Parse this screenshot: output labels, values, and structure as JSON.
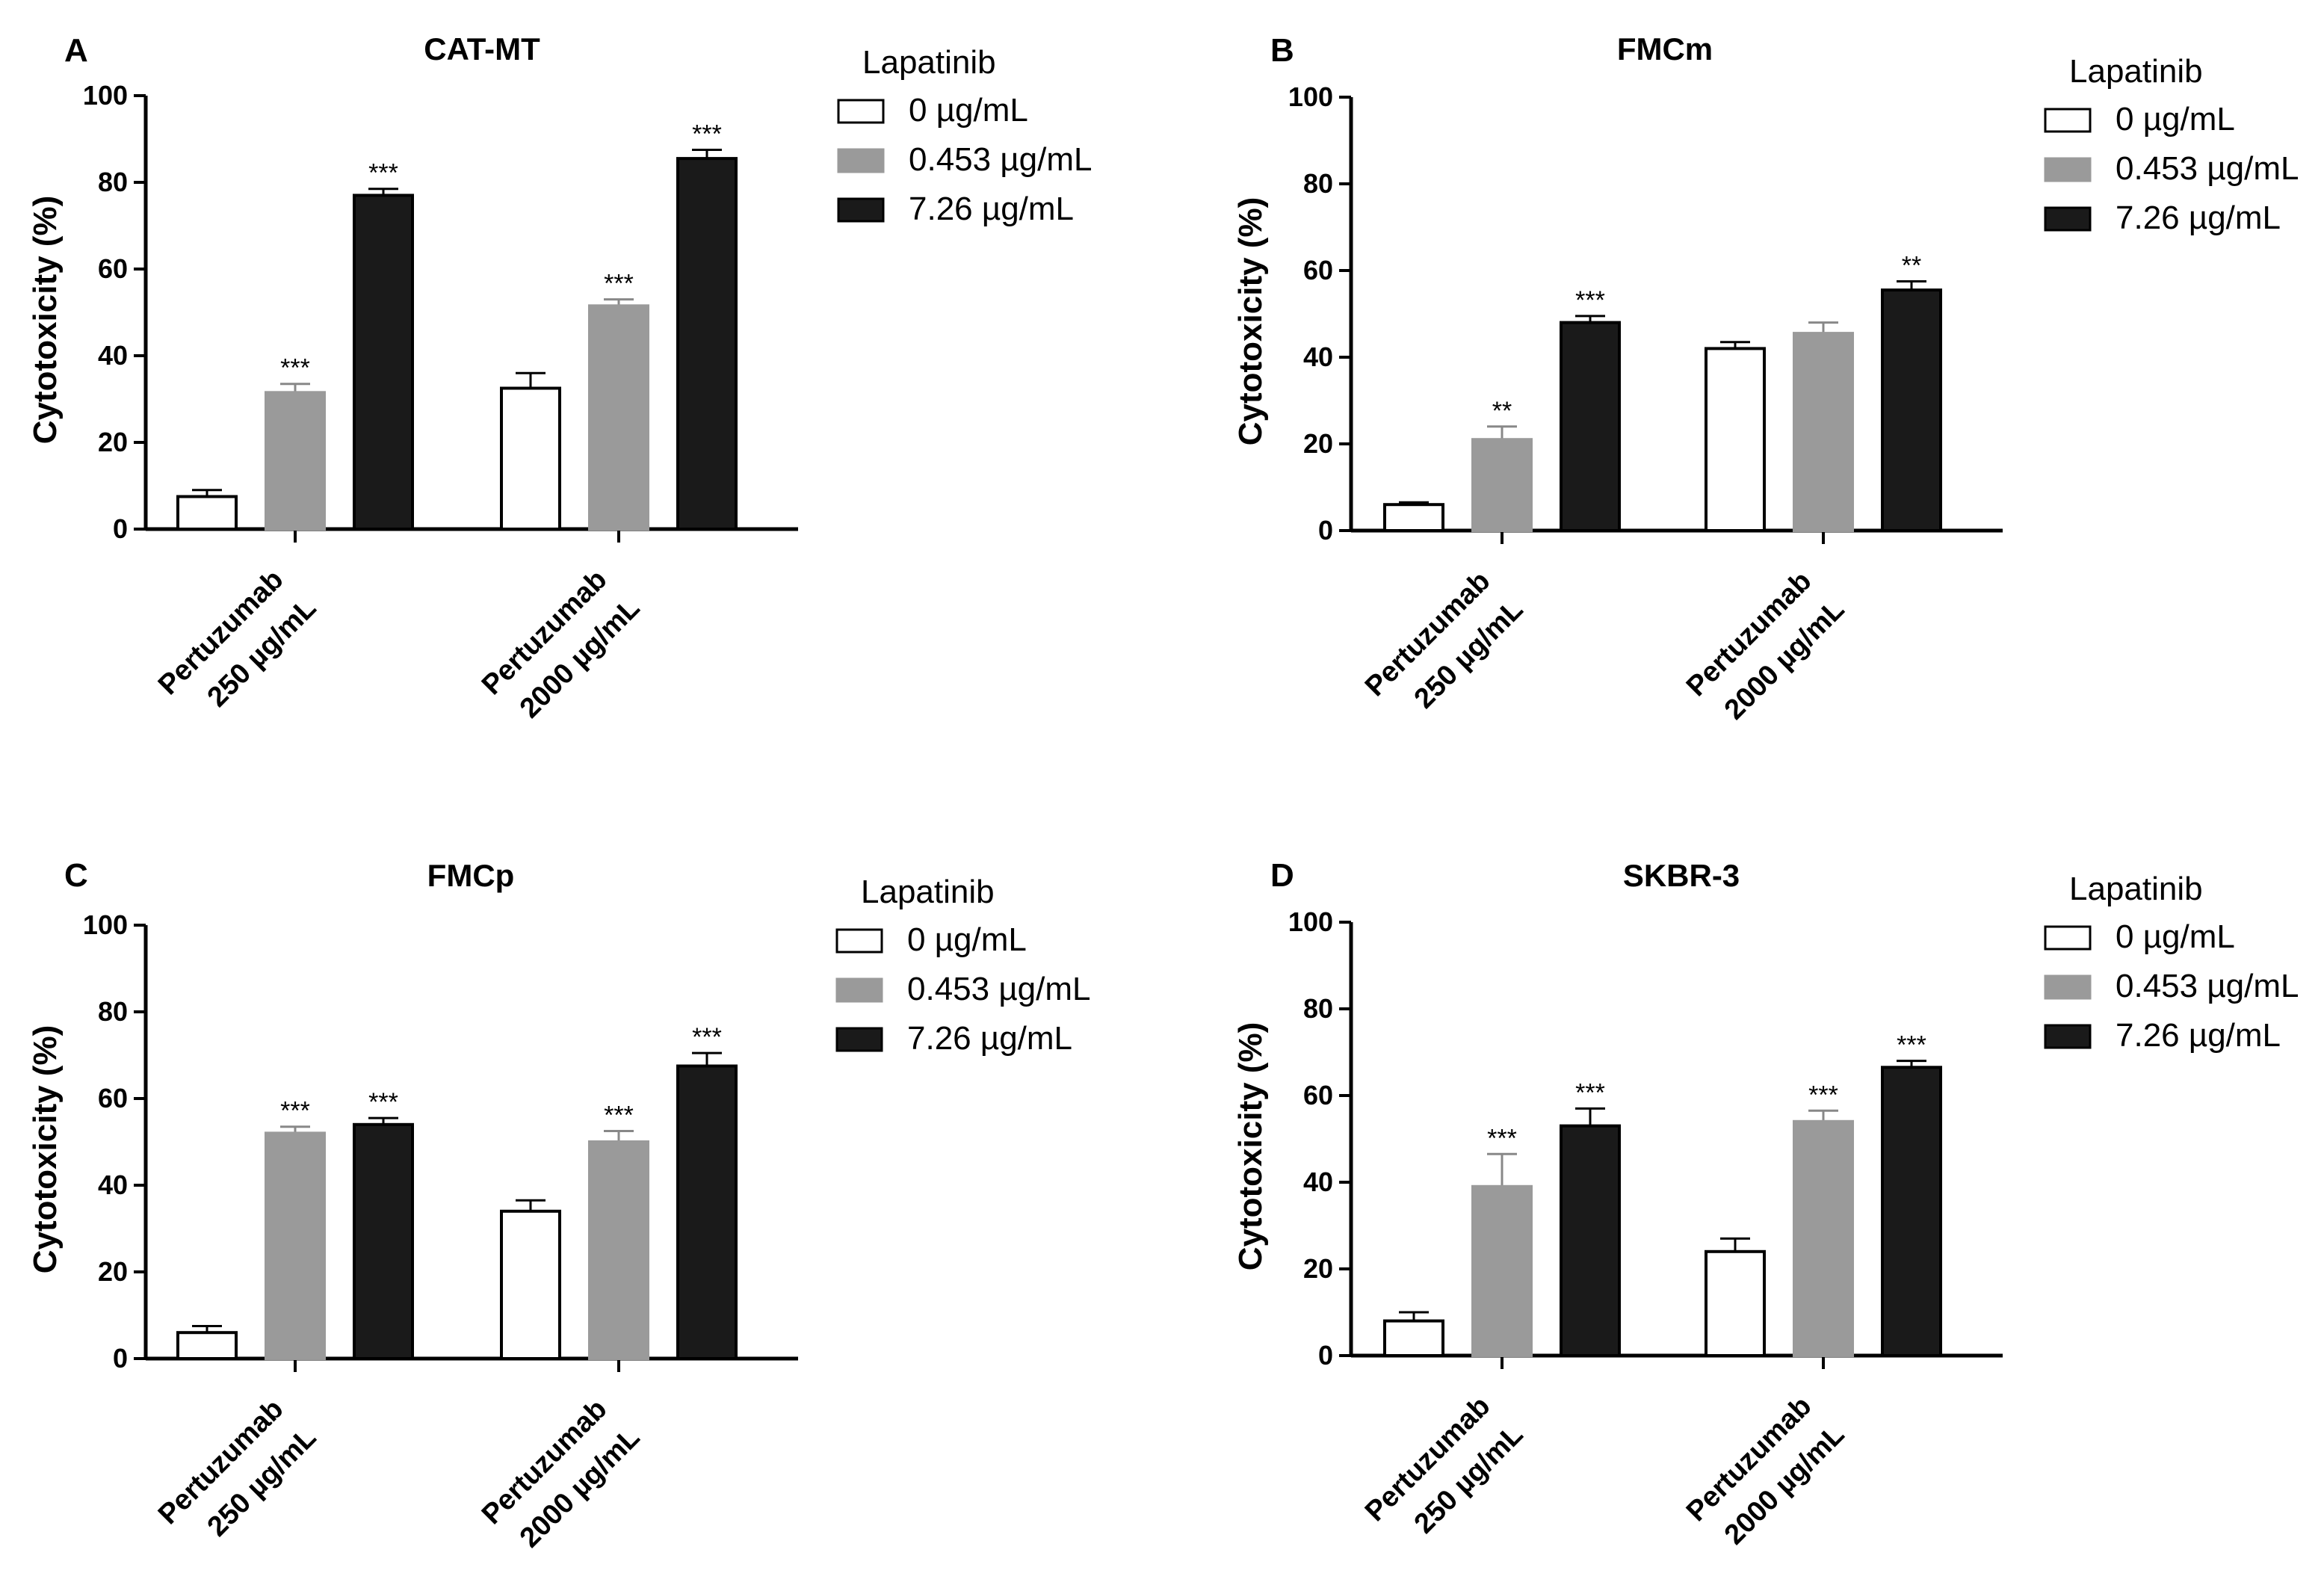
{
  "chart_data": [
    {
      "type": "bar",
      "panel_label": "A",
      "title": "CAT-MT",
      "ylabel": "Cytotoxicity (%)",
      "ylim": [
        0,
        100
      ],
      "yticks": [
        "0",
        "20",
        "40",
        "60",
        "80",
        "100"
      ],
      "categories": [
        [
          "Pertuzumab",
          "250 µg/mL"
        ],
        [
          "Pertuzumab",
          "2000 µg/mL"
        ]
      ],
      "legend_title": "Lapatinib",
      "series": [
        {
          "name": "0 µg/mL",
          "color": "#ffffff",
          "values": [
            7.5,
            32.5
          ],
          "errors": [
            1.5,
            3.5
          ],
          "sig": [
            "",
            ""
          ]
        },
        {
          "name": "0.453 µg/mL",
          "color": "#9a9a9a",
          "values": [
            31.5,
            51.5
          ],
          "errors": [
            2.0,
            1.5
          ],
          "sig": [
            "***",
            "***"
          ]
        },
        {
          "name": "7.26 µg/mL",
          "color": "#1a1a1a",
          "values": [
            77,
            85.5
          ],
          "errors": [
            1.5,
            2.0
          ],
          "sig": [
            "***",
            "***"
          ]
        }
      ]
    },
    {
      "type": "bar",
      "panel_label": "B",
      "title": "FMCm",
      "ylabel": "Cytotoxicity (%)",
      "ylim": [
        0,
        100
      ],
      "yticks": [
        "0",
        "20",
        "40",
        "60",
        "80",
        "100"
      ],
      "categories": [
        [
          "Pertuzumab",
          "250 µg/mL"
        ],
        [
          "Pertuzumab",
          "2000 µg/mL"
        ]
      ],
      "legend_title": "Lapatinib",
      "series": [
        {
          "name": "0 µg/mL",
          "color": "#ffffff",
          "values": [
            6,
            42
          ],
          "errors": [
            0.5,
            1.5
          ],
          "sig": [
            "",
            ""
          ]
        },
        {
          "name": "0.453 µg/mL",
          "color": "#9a9a9a",
          "values": [
            21,
            45.5
          ],
          "errors": [
            3.0,
            2.5
          ],
          "sig": [
            "**",
            ""
          ]
        },
        {
          "name": "7.26 µg/mL",
          "color": "#1a1a1a",
          "values": [
            48,
            55.5
          ],
          "errors": [
            1.5,
            2.0
          ],
          "sig": [
            "***",
            "**"
          ]
        }
      ]
    },
    {
      "type": "bar",
      "panel_label": "C",
      "title": "FMCp",
      "ylabel": "Cytotoxicity (%)",
      "ylim": [
        0,
        100
      ],
      "yticks": [
        "0",
        "20",
        "40",
        "60",
        "80",
        "100"
      ],
      "categories": [
        [
          "Pertuzumab",
          "250 µg/mL"
        ],
        [
          "Pertuzumab",
          "2000 µg/mL"
        ]
      ],
      "legend_title": "Lapatinib",
      "series": [
        {
          "name": "0 µg/mL",
          "color": "#ffffff",
          "values": [
            6,
            34
          ],
          "errors": [
            1.5,
            2.5
          ],
          "sig": [
            "",
            ""
          ]
        },
        {
          "name": "0.453 µg/mL",
          "color": "#9a9a9a",
          "values": [
            52,
            50
          ],
          "errors": [
            1.5,
            2.5
          ],
          "sig": [
            "***",
            "***"
          ]
        },
        {
          "name": "7.26 µg/mL",
          "color": "#1a1a1a",
          "values": [
            54,
            67.5
          ],
          "errors": [
            1.5,
            3.0
          ],
          "sig": [
            "***",
            "***"
          ]
        }
      ]
    },
    {
      "type": "bar",
      "panel_label": "D",
      "title": "SKBR-3",
      "ylabel": "Cytotoxicity (%)",
      "ylim": [
        0,
        100
      ],
      "yticks": [
        "0",
        "20",
        "40",
        "60",
        "80",
        "100"
      ],
      "categories": [
        [
          "Pertuzumab",
          "250 µg/mL"
        ],
        [
          "Pertuzumab",
          "2000 µg/mL"
        ]
      ],
      "legend_title": "Lapatinib",
      "series": [
        {
          "name": "0 µg/mL",
          "color": "#ffffff",
          "values": [
            8,
            24
          ],
          "errors": [
            2.0,
            3.0
          ],
          "sig": [
            "",
            ""
          ]
        },
        {
          "name": "0.453 µg/mL",
          "color": "#9a9a9a",
          "values": [
            39,
            54
          ],
          "errors": [
            7.5,
            2.5
          ],
          "sig": [
            "***",
            "***"
          ]
        },
        {
          "name": "7.26 µg/mL",
          "color": "#1a1a1a",
          "values": [
            53,
            66.5
          ],
          "errors": [
            4.0,
            1.5
          ],
          "sig": [
            "***",
            "***"
          ]
        }
      ]
    }
  ]
}
